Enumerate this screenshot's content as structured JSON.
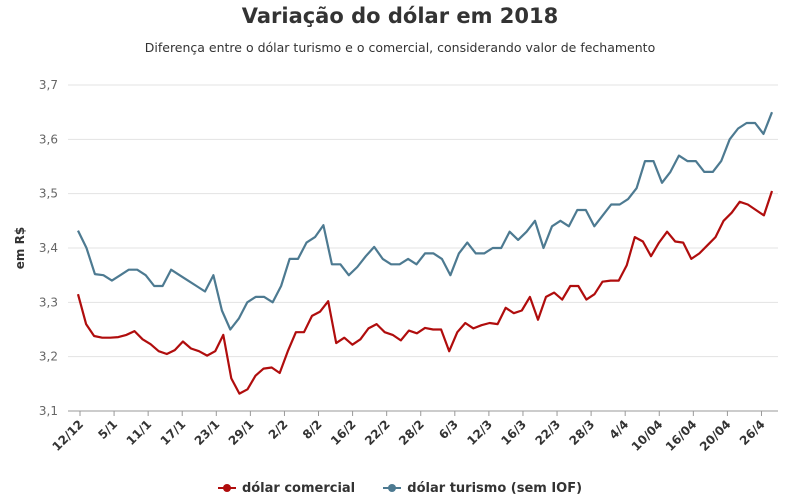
{
  "chart_data": {
    "type": "line",
    "title": "Variação do dólar em 2018",
    "subtitle": "Diferença entre o dólar turismo e o comercial, considerando valor de fechamento",
    "ylabel": "em R$",
    "xlabel": "",
    "ylim": [
      3.1,
      3.7
    ],
    "yticks": [
      "3,1",
      "3,2",
      "3,3",
      "3,4",
      "3,5",
      "3,6",
      "3,7"
    ],
    "grid": "horizontal",
    "legend_position": "bottom",
    "x_tick_labels": [
      "12/12",
      "5/1",
      "11/1",
      "17/1",
      "23/1",
      "29/1",
      "2/2",
      "8/2",
      "16/2",
      "22/2",
      "28/2",
      "6/3",
      "12/3",
      "16/3",
      "22/3",
      "28/3",
      "4/4",
      "10/04",
      "16/04",
      "20/04",
      "26/4"
    ],
    "x_points": 100,
    "series": [
      {
        "name": "dólar comercial",
        "color": "#b00d0d",
        "values": [
          3.315,
          3.26,
          3.238,
          3.235,
          3.235,
          3.236,
          3.24,
          3.247,
          3.232,
          3.223,
          3.21,
          3.205,
          3.212,
          3.228,
          3.215,
          3.21,
          3.202,
          3.21,
          3.24,
          3.16,
          3.132,
          3.14,
          3.165,
          3.178,
          3.18,
          3.17,
          3.21,
          3.245,
          3.245,
          3.275,
          3.283,
          3.302,
          3.225,
          3.235,
          3.222,
          3.232,
          3.252,
          3.26,
          3.245,
          3.24,
          3.23,
          3.248,
          3.243,
          3.253,
          3.25,
          3.25,
          3.21,
          3.245,
          3.262,
          3.252,
          3.258,
          3.262,
          3.26,
          3.29,
          3.28,
          3.285,
          3.31,
          3.268,
          3.31,
          3.318,
          3.305,
          3.33,
          3.33,
          3.305,
          3.315,
          3.338,
          3.34,
          3.34,
          3.368,
          3.42,
          3.412,
          3.385,
          3.41,
          3.43,
          3.412,
          3.41,
          3.38,
          3.39,
          3.405,
          3.42,
          3.45,
          3.465,
          3.485,
          3.48,
          3.47,
          3.46,
          3.505
        ]
      },
      {
        "name": "dólar turismo (sem IOF)",
        "color": "#4d7a91",
        "values": [
          3.432,
          3.4,
          3.352,
          3.35,
          3.34,
          3.35,
          3.36,
          3.36,
          3.35,
          3.33,
          3.33,
          3.36,
          3.35,
          3.34,
          3.33,
          3.32,
          3.35,
          3.285,
          3.25,
          3.27,
          3.3,
          3.31,
          3.31,
          3.3,
          3.33,
          3.38,
          3.38,
          3.41,
          3.42,
          3.442,
          3.37,
          3.37,
          3.35,
          3.365,
          3.385,
          3.402,
          3.38,
          3.37,
          3.37,
          3.38,
          3.37,
          3.39,
          3.39,
          3.38,
          3.35,
          3.39,
          3.41,
          3.39,
          3.39,
          3.4,
          3.4,
          3.43,
          3.415,
          3.43,
          3.45,
          3.4,
          3.44,
          3.45,
          3.44,
          3.47,
          3.47,
          3.44,
          3.46,
          3.48,
          3.48,
          3.49,
          3.51,
          3.56,
          3.56,
          3.52,
          3.54,
          3.57,
          3.56,
          3.56,
          3.54,
          3.54,
          3.56,
          3.6,
          3.62,
          3.63,
          3.63,
          3.61,
          3.65
        ]
      }
    ]
  }
}
